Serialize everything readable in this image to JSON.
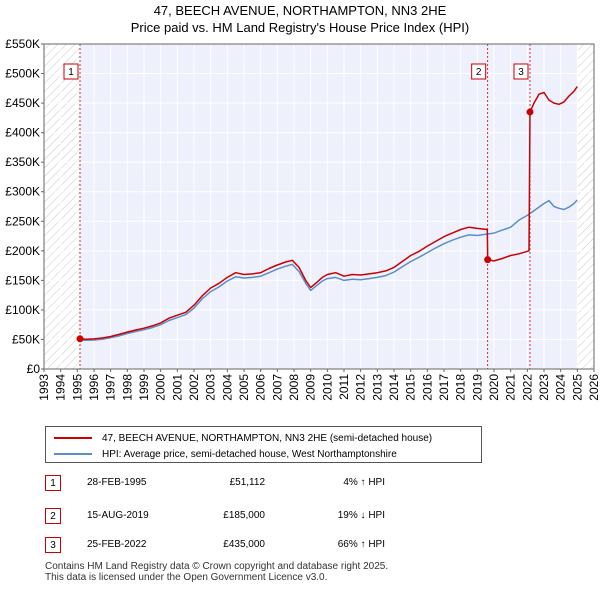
{
  "chart_data": {
    "type": "line",
    "title": "47, BEECH AVENUE, NORTHAMPTON, NN3 2HE",
    "subtitle": "Price paid vs. HM Land Registry's House Price Index (HPI)",
    "xlim": [
      1993,
      2026
    ],
    "ylim": [
      0,
      550000
    ],
    "x_ticks": [
      1993,
      1994,
      1995,
      1996,
      1997,
      1998,
      1999,
      2000,
      2001,
      2002,
      2003,
      2004,
      2005,
      2006,
      2007,
      2008,
      2009,
      2010,
      2011,
      2012,
      2013,
      2014,
      2015,
      2016,
      2017,
      2018,
      2019,
      2020,
      2021,
      2022,
      2023,
      2024,
      2025,
      2026
    ],
    "y_ticks": [
      {
        "value": 0,
        "label": "£0"
      },
      {
        "value": 50000,
        "label": "£50K"
      },
      {
        "value": 100000,
        "label": "£100K"
      },
      {
        "value": 150000,
        "label": "£150K"
      },
      {
        "value": 200000,
        "label": "£200K"
      },
      {
        "value": 250000,
        "label": "£250K"
      },
      {
        "value": 300000,
        "label": "£300K"
      },
      {
        "value": 350000,
        "label": "£350K"
      },
      {
        "value": 400000,
        "label": "£400K"
      },
      {
        "value": 450000,
        "label": "£450K"
      },
      {
        "value": 500000,
        "label": "£500K"
      },
      {
        "value": 550000,
        "label": "£550K"
      }
    ],
    "grid": true,
    "hatched_before": 1995.16,
    "hatched_after": 2025.0,
    "series": [
      {
        "name": "47, BEECH AVENUE, NORTHAMPTON, NN3 2HE (semi-detached house)",
        "color": "#cc0000",
        "x": [
          1995.16,
          1995.5,
          1996,
          1996.5,
          1997,
          1997.5,
          1998,
          1998.5,
          1999,
          1999.5,
          2000,
          2000.5,
          2001,
          2001.5,
          2002,
          2002.5,
          2003,
          2003.5,
          2004,
          2004.5,
          2005,
          2005.5,
          2006,
          2006.5,
          2007,
          2007.5,
          2007.9,
          2008.3,
          2008.7,
          2009.0,
          2009.3,
          2009.7,
          2010,
          2010.5,
          2011,
          2011.5,
          2012,
          2012.5,
          2013,
          2013.5,
          2014,
          2014.5,
          2015,
          2015.5,
          2016,
          2016.5,
          2017,
          2017.5,
          2018,
          2018.5,
          2019,
          2019.6,
          2019.62,
          2020,
          2020.5,
          2021,
          2021.5,
          2022.1,
          2022.16,
          2022.4,
          2022.7,
          2023.0,
          2023.3,
          2023.6,
          2023.9,
          2024.2,
          2024.5,
          2024.8,
          2025.0
        ],
        "values": [
          51112,
          50500,
          51000,
          52500,
          55000,
          58500,
          62500,
          66000,
          69000,
          73000,
          78000,
          86000,
          91000,
          96000,
          108000,
          124000,
          137000,
          145000,
          155000,
          163000,
          160000,
          161000,
          163000,
          170000,
          176000,
          181000,
          184000,
          172000,
          150000,
          138000,
          145000,
          155000,
          160000,
          163000,
          157000,
          160000,
          159000,
          161000,
          163000,
          166000,
          172000,
          182000,
          192000,
          199000,
          208000,
          216000,
          224000,
          230000,
          236000,
          240000,
          238000,
          236000,
          185000,
          183000,
          187000,
          192000,
          195000,
          200000,
          435000,
          450000,
          465000,
          468000,
          455000,
          450000,
          448000,
          452000,
          462000,
          470000,
          478000
        ]
      },
      {
        "name": "HPI: Average price, semi-detached house, West Northamptonshire",
        "color": "#5b8ec9",
        "x": [
          1995.0,
          1995.5,
          1996,
          1996.5,
          1997,
          1997.5,
          1998,
          1998.5,
          1999,
          1999.5,
          2000,
          2000.5,
          2001,
          2001.5,
          2002,
          2002.5,
          2003,
          2003.5,
          2004,
          2004.5,
          2005,
          2005.5,
          2006,
          2006.5,
          2007,
          2007.5,
          2007.9,
          2008.3,
          2008.7,
          2009.0,
          2009.3,
          2009.7,
          2010,
          2010.5,
          2011,
          2011.5,
          2012,
          2012.5,
          2013,
          2013.5,
          2014,
          2014.5,
          2015,
          2015.5,
          2016,
          2016.5,
          2017,
          2017.5,
          2018,
          2018.5,
          2019,
          2019.5,
          2020,
          2020.5,
          2021,
          2021.5,
          2022,
          2022.5,
          2023.0,
          2023.3,
          2023.6,
          2023.9,
          2024.2,
          2024.5,
          2024.8,
          2025.0
        ],
        "values": [
          49000,
          48500,
          49000,
          50500,
          53000,
          56000,
          60000,
          63500,
          66500,
          70000,
          75000,
          82000,
          87000,
          92000,
          103000,
          119000,
          131000,
          139000,
          149000,
          156000,
          154000,
          155000,
          157000,
          163000,
          169000,
          174000,
          177000,
          165000,
          145000,
          133000,
          140000,
          149000,
          153000,
          155000,
          150000,
          152000,
          151000,
          153000,
          155000,
          158000,
          164000,
          173000,
          182000,
          189000,
          197000,
          205000,
          212000,
          218000,
          223000,
          227000,
          226000,
          228000,
          230000,
          235000,
          240000,
          252000,
          260000,
          270000,
          280000,
          285000,
          275000,
          272000,
          270000,
          274000,
          280000,
          286000
        ]
      }
    ],
    "transactions": [
      {
        "label": "1",
        "x": 1995.16,
        "value": 51112
      },
      {
        "label": "2",
        "x": 2019.62,
        "value": 185000
      },
      {
        "label": "3",
        "x": 2022.16,
        "value": 435000
      }
    ]
  },
  "legend": {
    "red_label": "47, BEECH AVENUE, NORTHAMPTON, NN3 2HE (semi-detached house)",
    "blue_label": "HPI: Average price, semi-detached house, West Northamptonshire",
    "red_color": "#cc0000",
    "blue_color": "#5b8ec9"
  },
  "table": [
    {
      "num": "1",
      "date": "28-FEB-1995",
      "price": "£51,112",
      "hpi": "4% ↑ HPI"
    },
    {
      "num": "2",
      "date": "15-AUG-2019",
      "price": "£185,000",
      "hpi": "19% ↓ HPI"
    },
    {
      "num": "3",
      "date": "25-FEB-2022",
      "price": "£435,000",
      "hpi": "66% ↑ HPI"
    }
  ],
  "footer": {
    "line1": "Contains HM Land Registry data © Crown copyright and database right 2025.",
    "line2": "This data is licensed under the Open Government Licence v3.0."
  }
}
